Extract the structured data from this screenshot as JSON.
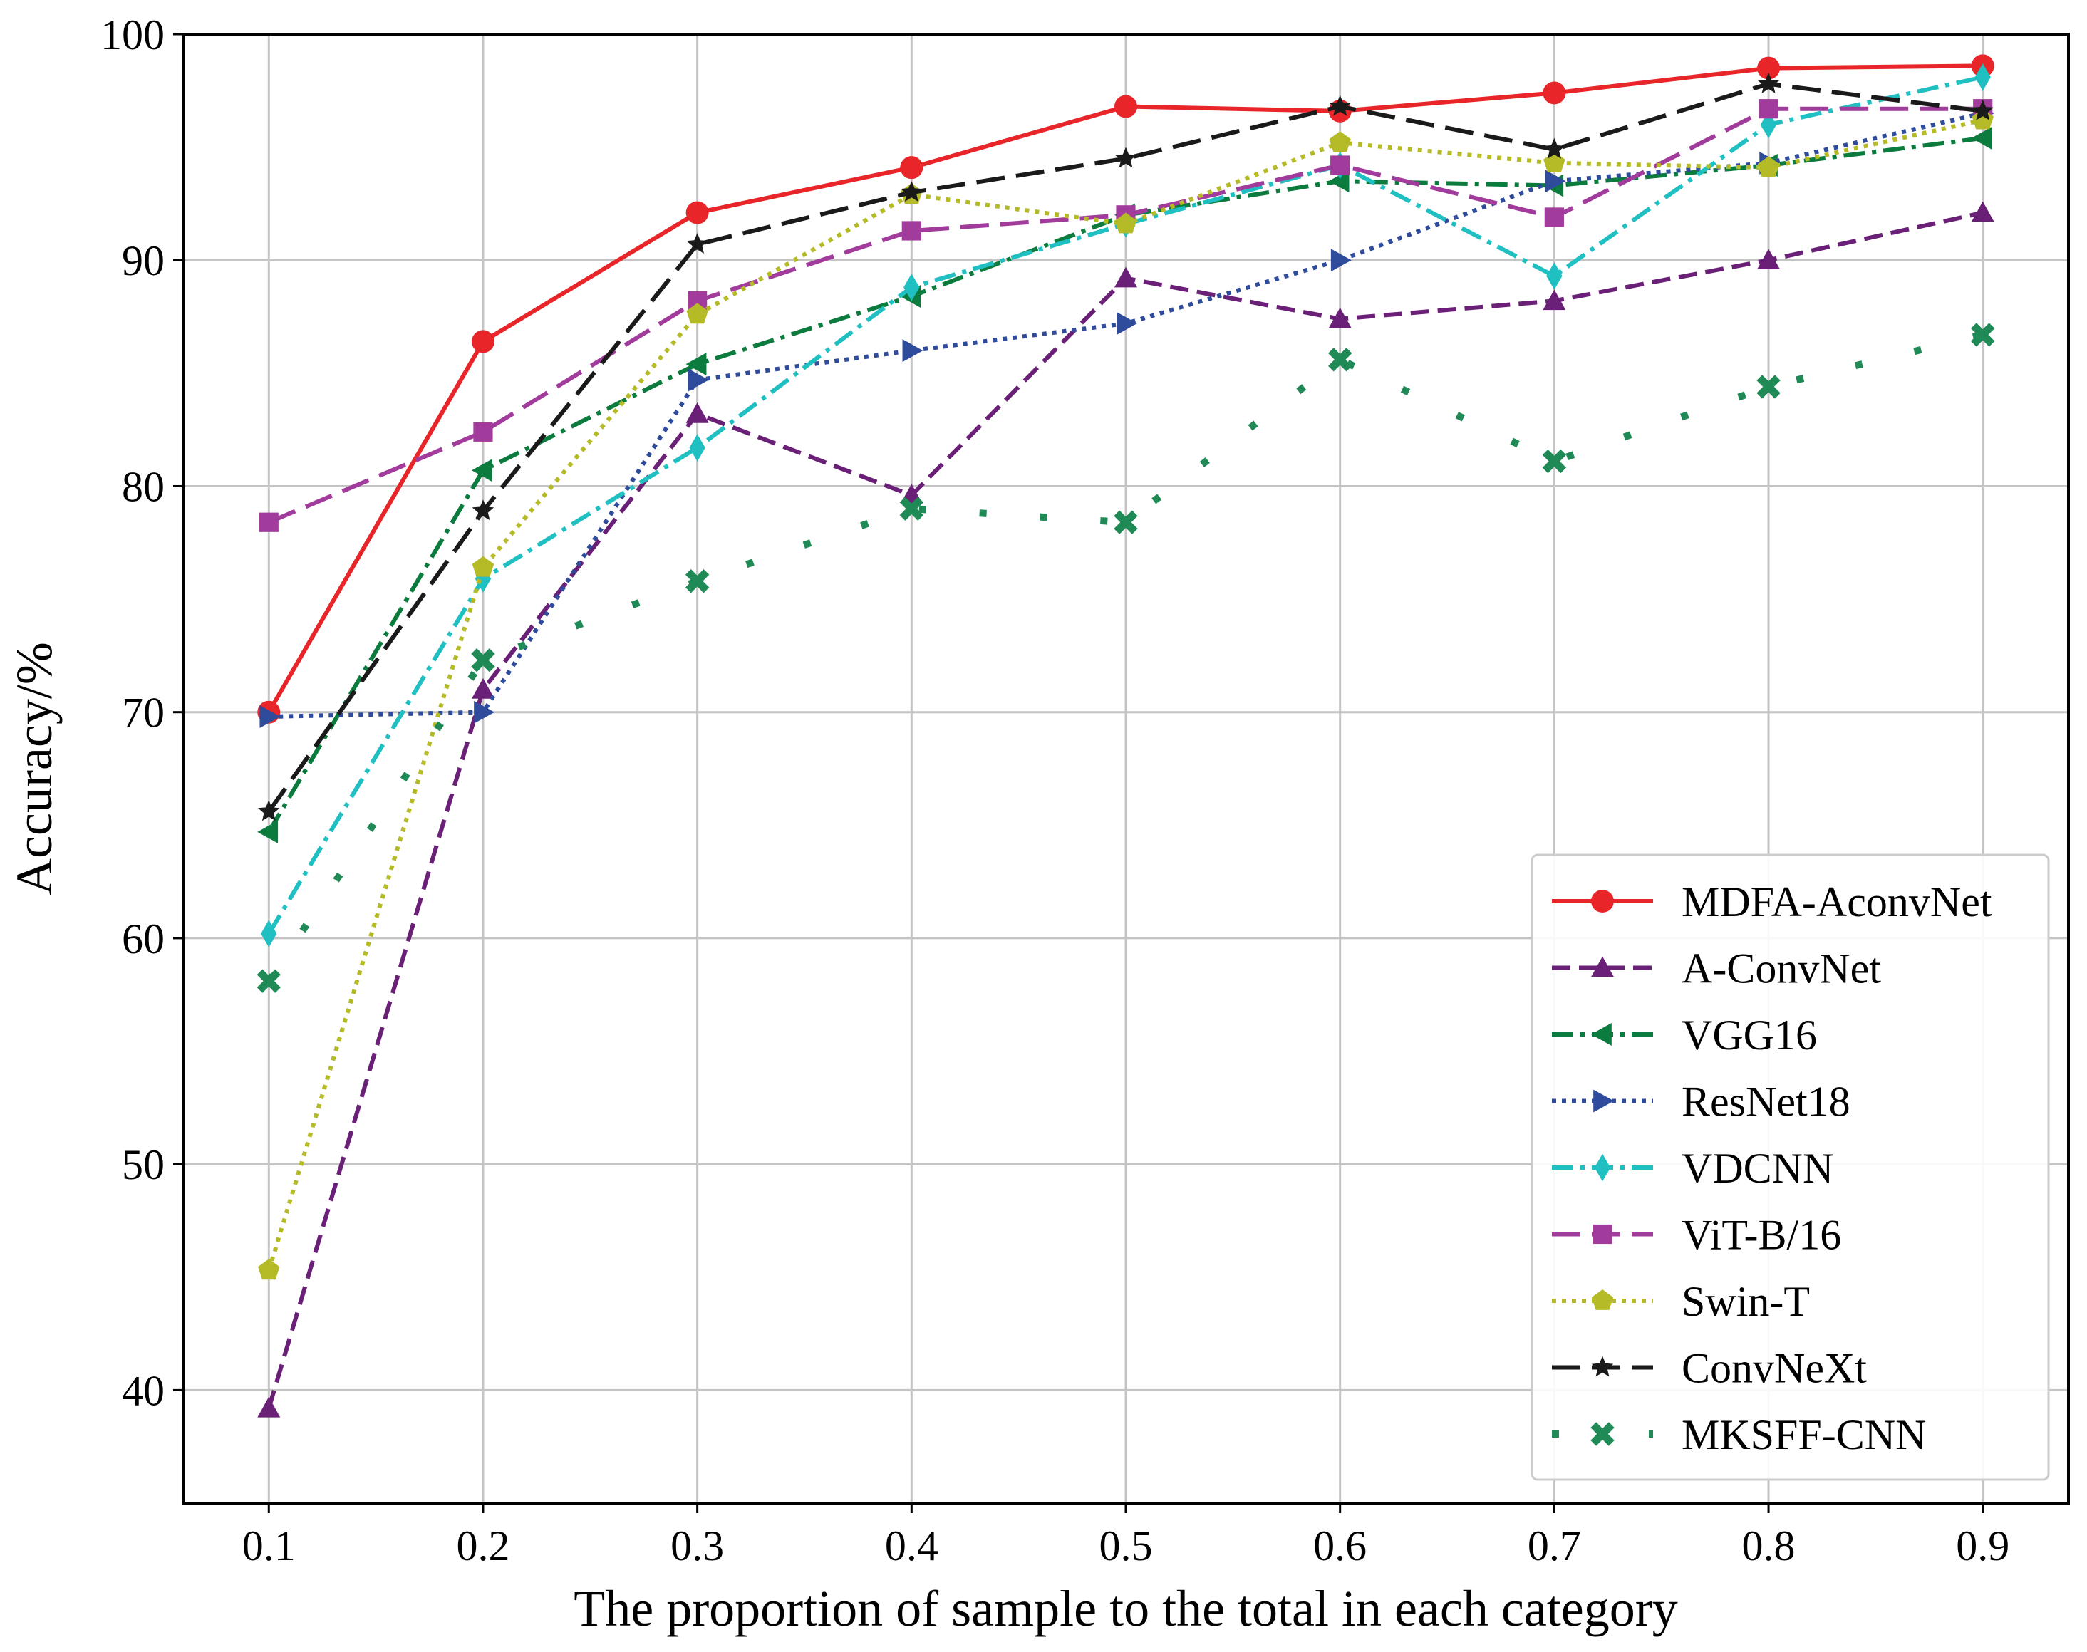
{
  "chart_data": {
    "type": "line",
    "title": "",
    "xlabel": "The proportion of sample to the total in each category",
    "ylabel": "Accuracy/%",
    "xlim": [
      0.06,
      0.94
    ],
    "ylim": [
      35,
      100
    ],
    "grid": true,
    "legend_position": "lower-right",
    "x": [
      0.1,
      0.2,
      0.3,
      0.4,
      0.5,
      0.6,
      0.7,
      0.8,
      0.9
    ],
    "x_tick_labels": [
      "0.1",
      "0.2",
      "0.3",
      "0.4",
      "0.5",
      "0.6",
      "0.7",
      "0.8",
      "0.9"
    ],
    "y_ticks": [
      40,
      50,
      60,
      70,
      80,
      90,
      100
    ],
    "y_tick_labels": [
      "40",
      "50",
      "60",
      "70",
      "80",
      "90",
      "100"
    ],
    "series": [
      {
        "name": "MDFA-AconvNet",
        "color": "#e8262a",
        "dash": "solid",
        "marker": "circle",
        "values": [
          70.0,
          86.4,
          92.1,
          94.1,
          96.8,
          96.6,
          97.4,
          98.5,
          98.6
        ]
      },
      {
        "name": "A-ConvNet",
        "color": "#6b2078",
        "dash": "dashed",
        "marker": "triangle-up",
        "values": [
          39.2,
          71.0,
          83.2,
          79.6,
          89.2,
          87.4,
          88.2,
          90.0,
          92.1
        ]
      },
      {
        "name": "VGG16",
        "color": "#0b7b3e",
        "dash": "dashdot",
        "marker": "triangle-left",
        "values": [
          64.7,
          80.7,
          85.4,
          88.4,
          92.0,
          93.5,
          93.3,
          94.2,
          95.4
        ]
      },
      {
        "name": "ResNet18",
        "color": "#2f4b9c",
        "dash": "dotted",
        "marker": "triangle-right",
        "values": [
          69.8,
          70.0,
          84.7,
          86.0,
          87.2,
          90.0,
          93.5,
          94.3,
          96.5
        ]
      },
      {
        "name": "VDCNN",
        "color": "#1fbfc2",
        "dash": "dashdot",
        "marker": "diamond",
        "values": [
          60.2,
          75.9,
          81.7,
          88.8,
          91.6,
          94.2,
          89.3,
          96.0,
          98.1
        ]
      },
      {
        "name": "ViT-B/16",
        "color": "#a23c9c",
        "dash": "dashed-long",
        "marker": "square",
        "values": [
          78.4,
          82.4,
          88.2,
          91.3,
          92.0,
          94.2,
          91.9,
          96.7,
          96.7
        ]
      },
      {
        "name": "Swin-T",
        "color": "#b5ba27",
        "dash": "dotted",
        "marker": "pentagon",
        "values": [
          45.3,
          76.4,
          87.6,
          92.9,
          91.6,
          95.2,
          94.3,
          94.1,
          96.2
        ]
      },
      {
        "name": "ConvNeXt",
        "color": "#1a1a1a",
        "dash": "dashed-long",
        "marker": "star",
        "values": [
          65.6,
          78.9,
          90.7,
          93.0,
          94.5,
          96.8,
          94.9,
          97.8,
          96.6
        ]
      },
      {
        "name": "MKSFF-CNN",
        "color": "#1f8a55",
        "dash": "sparse-dotted",
        "marker": "x",
        "values": [
          58.1,
          72.3,
          75.8,
          79.0,
          78.4,
          85.6,
          81.1,
          84.4,
          86.7
        ]
      }
    ]
  }
}
